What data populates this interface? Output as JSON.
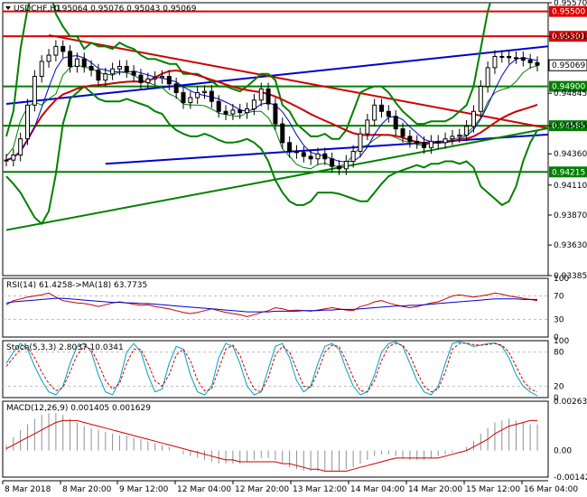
{
  "chart_data": [
    {
      "type": "line",
      "title": "USDCHF,H1",
      "ohlc_text": "0.95064 0.95076 0.95043 0.95069",
      "ylim": [
        0.93385,
        0.9557
      ],
      "y_ticks": [
        "0.95570",
        "0.95301",
        "0.95069",
        "0.94845",
        "0.94585",
        "0.94360",
        "0.94110",
        "0.93870",
        "0.93630",
        "0.93385"
      ],
      "levels": [
        {
          "value": 0.955,
          "label": "0.95500",
          "color": "#e00000"
        },
        {
          "value": 0.95301,
          "label": "0.95301",
          "color": "#e00000"
        },
        {
          "value": 0.949,
          "label": "0.94900",
          "color": "#008000"
        },
        {
          "value": 0.94585,
          "label": "0.94585",
          "color": "#008000"
        },
        {
          "value": 0.94215,
          "label": "0.94215",
          "color": "#008000"
        }
      ],
      "current_price": {
        "value": 0.95069,
        "label": "0.95069"
      },
      "close": [
        0.9431,
        0.9435,
        0.9448,
        0.9475,
        0.9498,
        0.951,
        0.9515,
        0.9522,
        0.9518,
        0.9506,
        0.9512,
        0.9506,
        0.9503,
        0.9495,
        0.95,
        0.9504,
        0.9506,
        0.9502,
        0.9499,
        0.9493,
        0.9496,
        0.9497,
        0.9498,
        0.9492,
        0.9485,
        0.9477,
        0.9481,
        0.9485,
        0.9486,
        0.9478,
        0.947,
        0.9468,
        0.9471,
        0.9469,
        0.9472,
        0.9479,
        0.9488,
        0.9476,
        0.946,
        0.9445,
        0.9438,
        0.9437,
        0.9434,
        0.9432,
        0.9436,
        0.9432,
        0.9426,
        0.9424,
        0.943,
        0.9438,
        0.9452,
        0.9463,
        0.9475,
        0.947,
        0.9466,
        0.9456,
        0.945,
        0.9446,
        0.9445,
        0.9441,
        0.9446,
        0.9445,
        0.9448,
        0.945,
        0.9451,
        0.9458,
        0.947,
        0.949,
        0.9505,
        0.9514,
        0.9514,
        0.9513,
        0.9513,
        0.9511,
        0.9509,
        0.9507
      ],
      "upper_band": [
        0.945,
        0.947,
        0.952,
        0.9552,
        0.957,
        0.957,
        0.957,
        0.9548,
        0.9538,
        0.953,
        0.953,
        0.952,
        0.9525,
        0.9522,
        0.9522,
        0.952,
        0.9525,
        0.9522,
        0.952,
        0.9515,
        0.9512,
        0.9512,
        0.951,
        0.9508,
        0.9508,
        0.95,
        0.95,
        0.95,
        0.9497,
        0.9494,
        0.949,
        0.949,
        0.9488,
        0.9486,
        0.949,
        0.9495,
        0.95,
        0.95,
        0.9495,
        0.9475,
        0.947,
        0.946,
        0.9455,
        0.945,
        0.945,
        0.9452,
        0.9448,
        0.9448,
        0.9455,
        0.947,
        0.9485,
        0.9488,
        0.949,
        0.949,
        0.9485,
        0.9477,
        0.947,
        0.9465,
        0.946,
        0.946,
        0.9462,
        0.9462,
        0.9462,
        0.9465,
        0.947,
        0.9475,
        0.949,
        0.952,
        0.955,
        0.957,
        0.958,
        0.958,
        0.9578,
        0.9572,
        0.9565,
        0.9558
      ],
      "lower_band": [
        0.9418,
        0.9412,
        0.9405,
        0.9395,
        0.9385,
        0.938,
        0.939,
        0.942,
        0.946,
        0.948,
        0.9485,
        0.949,
        0.9485,
        0.948,
        0.9478,
        0.9478,
        0.9478,
        0.948,
        0.9478,
        0.9476,
        0.9474,
        0.947,
        0.9468,
        0.946,
        0.9455,
        0.9452,
        0.945,
        0.945,
        0.9452,
        0.945,
        0.9447,
        0.9445,
        0.9445,
        0.9446,
        0.9448,
        0.9445,
        0.944,
        0.943,
        0.9415,
        0.9405,
        0.9398,
        0.9395,
        0.9395,
        0.9398,
        0.9405,
        0.9405,
        0.9405,
        0.9404,
        0.9402,
        0.94,
        0.9398,
        0.9398,
        0.9405,
        0.9412,
        0.9418,
        0.9421,
        0.9423,
        0.9425,
        0.9427,
        0.9425,
        0.9428,
        0.9428,
        0.943,
        0.943,
        0.9428,
        0.943,
        0.9425,
        0.941,
        0.9405,
        0.94,
        0.9395,
        0.9398,
        0.941,
        0.943,
        0.9445,
        0.9455
      ],
      "rsi": {
        "label": "RSI(14) 61.4258",
        "ma_label": "->MA(18) 63.7735",
        "ticks": [
          "100",
          "70",
          "30",
          "0"
        ],
        "values": [
          55,
          62,
          65,
          68,
          70,
          72,
          75,
          68,
          62,
          60,
          58,
          57,
          55,
          52,
          55,
          58,
          60,
          58,
          56,
          54,
          55,
          52,
          50,
          48,
          45,
          42,
          40,
          42,
          45,
          48,
          45,
          42,
          40,
          38,
          35,
          38,
          42,
          45,
          50,
          48,
          45,
          46,
          45,
          44,
          46,
          48,
          50,
          48,
          46,
          45,
          52,
          55,
          60,
          62,
          58,
          55,
          52,
          50,
          52,
          55,
          58,
          60,
          65,
          70,
          72,
          70,
          68,
          70,
          72,
          75,
          73,
          70,
          68,
          66,
          64,
          62
        ],
        "ma": [
          58,
          60,
          61,
          62,
          63,
          64,
          65,
          66,
          66,
          65,
          64,
          63,
          62,
          61,
          60,
          59,
          59,
          58,
          58,
          57,
          57,
          56,
          55,
          54,
          53,
          52,
          51,
          50,
          49,
          48,
          47,
          46,
          45,
          44,
          43,
          43,
          43,
          43,
          44,
          44,
          44,
          44,
          45,
          45,
          45,
          46,
          46,
          47,
          47,
          47,
          48,
          49,
          50,
          51,
          52,
          53,
          53,
          54,
          54,
          55,
          56,
          57,
          58,
          59,
          60,
          61,
          62,
          63,
          64,
          65,
          65,
          65,
          65,
          64,
          64,
          64
        ]
      },
      "stochastic": {
        "label": "Stoch(5,3,3) 2.8037 10.0341",
        "ticks": [
          "100",
          "80",
          "20",
          "0"
        ],
        "k": [
          60,
          80,
          95,
          85,
          55,
          30,
          10,
          5,
          20,
          60,
          90,
          95,
          80,
          40,
          10,
          5,
          30,
          80,
          95,
          80,
          40,
          10,
          15,
          60,
          90,
          85,
          40,
          10,
          5,
          20,
          70,
          95,
          90,
          60,
          20,
          5,
          10,
          50,
          90,
          95,
          70,
          30,
          10,
          20,
          60,
          90,
          95,
          85,
          50,
          20,
          5,
          10,
          40,
          80,
          95,
          98,
          90,
          60,
          30,
          10,
          5,
          20,
          60,
          95,
          98,
          95,
          90,
          92,
          95,
          96,
          90,
          70,
          40,
          20,
          10,
          3
        ],
        "d": [
          55,
          70,
          85,
          88,
          70,
          45,
          25,
          12,
          18,
          45,
          75,
          90,
          85,
          60,
          30,
          15,
          25,
          60,
          85,
          85,
          60,
          30,
          20,
          40,
          75,
          85,
          65,
          30,
          12,
          15,
          50,
          85,
          92,
          75,
          40,
          15,
          10,
          35,
          75,
          90,
          80,
          50,
          20,
          18,
          45,
          80,
          92,
          90,
          65,
          35,
          12,
          10,
          30,
          65,
          90,
          95,
          92,
          75,
          45,
          20,
          10,
          15,
          45,
          85,
          95,
          96,
          93,
          92,
          93,
          95,
          92,
          80,
          55,
          30,
          15,
          10
        ]
      },
      "macd": {
        "label": "MACD(12,26,9) 0.001405 0.001629",
        "ticks": [
          "0.002634",
          "0.00",
          "-0.00142"
        ],
        "ylim": [
          -0.00142,
          0.002634
        ],
        "histogram": [
          0.0003,
          0.0007,
          0.0011,
          0.0014,
          0.0017,
          0.0019,
          0.002,
          0.002,
          0.0019,
          0.0017,
          0.0015,
          0.0013,
          0.0012,
          0.0011,
          0.001,
          0.0009,
          0.0008,
          0.0008,
          0.0007,
          0.0006,
          0.0005,
          0.0004,
          0.0003,
          0.0002,
          0.0,
          -0.0002,
          -0.0003,
          -0.0004,
          -0.0005,
          -0.0006,
          -0.0007,
          -0.0007,
          -0.0007,
          -0.0007,
          -0.0006,
          -0.0005,
          -0.0004,
          -0.0004,
          -0.0005,
          -0.0007,
          -0.0009,
          -0.001,
          -0.0011,
          -0.0011,
          -0.0011,
          -0.0011,
          -0.0011,
          -0.0011,
          -0.001,
          -0.0009,
          -0.0007,
          -0.0005,
          -0.0003,
          -0.0002,
          -0.0002,
          -0.0003,
          -0.0004,
          -0.0005,
          -0.0005,
          -0.0005,
          -0.0004,
          -0.0003,
          -0.0002,
          -0.0001,
          0.0,
          0.0002,
          0.0005,
          0.0009,
          0.0012,
          0.0015,
          0.0016,
          0.0017,
          0.0016,
          0.0015,
          0.0014,
          0.0014
        ],
        "signal": [
          0.0001,
          0.0003,
          0.0005,
          0.0007,
          0.0009,
          0.0011,
          0.0013,
          0.0015,
          0.0016,
          0.0016,
          0.0016,
          0.0015,
          0.0014,
          0.0013,
          0.0012,
          0.0011,
          0.001,
          0.0009,
          0.0008,
          0.0007,
          0.0006,
          0.0005,
          0.0004,
          0.0003,
          0.0002,
          0.0001,
          0.0,
          -0.0001,
          -0.0002,
          -0.0003,
          -0.0004,
          -0.0005,
          -0.0005,
          -0.0006,
          -0.0006,
          -0.0006,
          -0.0006,
          -0.0006,
          -0.0006,
          -0.0007,
          -0.0007,
          -0.0008,
          -0.0009,
          -0.001,
          -0.001,
          -0.0011,
          -0.0011,
          -0.0011,
          -0.0011,
          -0.001,
          -0.0009,
          -0.0008,
          -0.0007,
          -0.0006,
          -0.0005,
          -0.0004,
          -0.0004,
          -0.0004,
          -0.0004,
          -0.0004,
          -0.0004,
          -0.0004,
          -0.0003,
          -0.0002,
          -0.0001,
          0.0,
          0.0002,
          0.0004,
          0.0006,
          0.0009,
          0.0011,
          0.0013,
          0.0014,
          0.0015,
          0.0016,
          0.0016
        ]
      },
      "x_ticks": [
        "8 Mar 2018",
        "8 Mar 20:00",
        "9 Mar 12:00",
        "12 Mar 04:00",
        "12 Mar 20:00",
        "13 Mar 12:00",
        "14 Mar 04:00",
        "14 Mar 20:00",
        "15 Mar 12:00",
        "16 Mar 04:00"
      ]
    }
  ]
}
